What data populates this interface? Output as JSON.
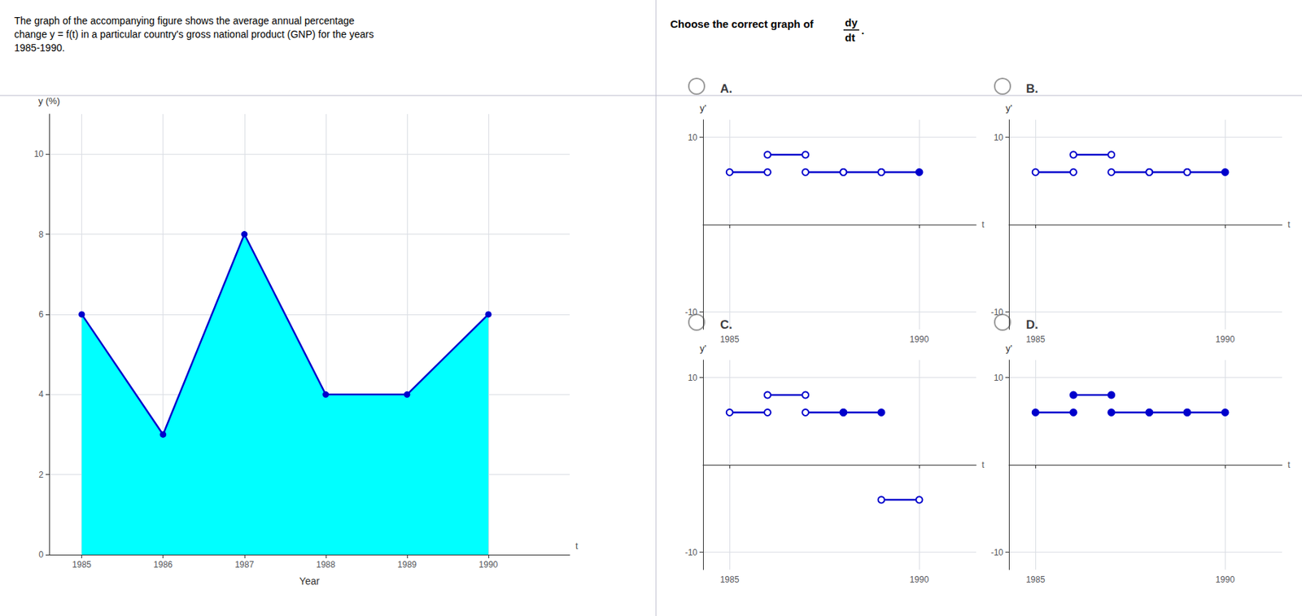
{
  "chart_data": [
    {
      "type": "line",
      "title": "The graph of the accompanying figure shows the average annual percentage\nchange y = f(t) in a particular country's gross national product (GNP) for the years\n1985-1990.",
      "x": [
        1985,
        1986,
        1987,
        1988,
        1989,
        1990
      ],
      "series": [
        {
          "type": "area",
          "color": "#00FFFF",
          "values": [
            6,
            3,
            8,
            4,
            4,
            6
          ]
        },
        {
          "type": "line",
          "color": "#0000CC",
          "marker": "circle",
          "values": [
            6,
            3,
            8,
            4,
            4,
            6
          ]
        }
      ],
      "xlim": [
        1984.6,
        1991
      ],
      "xticks": [
        1985,
        1986,
        1987,
        1988,
        1989,
        1990
      ],
      "ylim": [
        0,
        11
      ],
      "yticks": [
        0,
        2,
        4,
        6,
        8,
        10
      ],
      "xlabel": "Year",
      "ylabel": "y (%)",
      "annotations": [
        "t"
      ],
      "grid": true
    },
    {
      "type": "step",
      "title": "A.",
      "color": "#0000CC",
      "segments": [
        {
          "x0": 1985,
          "x1": 1986,
          "y": 6,
          "left_open": true,
          "right_open": true
        },
        {
          "x0": 1986,
          "x1": 1987,
          "y": 8,
          "left_open": true,
          "right_open": true
        },
        {
          "x0": 1987,
          "x1": 1988,
          "y": 6,
          "left_open": true,
          "right_open": true
        },
        {
          "x0": 1988,
          "x1": 1989,
          "y": 6,
          "left_open": true,
          "right_open": true
        },
        {
          "x0": 1989,
          "x1": 1990,
          "y": 6,
          "left_open": true,
          "right_open": false
        }
      ],
      "xlim": [
        1984.3,
        1991.5
      ],
      "xticks": [
        1985,
        1990
      ],
      "ylim": [
        -12,
        12
      ],
      "yticks": [
        -10,
        10
      ],
      "xlabel": "t",
      "ylabel": "y'",
      "grid": true,
      "annotations": [
        "Choose the correct graph of",
        "dy",
        "dt",
        "."
      ]
    },
    {
      "type": "step",
      "title": "B.",
      "color": "#0000CC",
      "segments": [
        {
          "x0": 1985,
          "x1": 1986,
          "y": 6,
          "left_open": true,
          "right_open": true
        },
        {
          "x0": 1986,
          "x1": 1987,
          "y": 8,
          "left_open": true,
          "right_open": true
        },
        {
          "x0": 1987,
          "x1": 1988,
          "y": 6,
          "left_open": true,
          "right_open": true
        },
        {
          "x0": 1988,
          "x1": 1989,
          "y": 6,
          "left_open": true,
          "right_open": true
        },
        {
          "x0": 1989,
          "x1": 1990,
          "y": 6,
          "left_open": true,
          "right_open": false
        }
      ],
      "xlim": [
        1984.3,
        1991.5
      ],
      "xticks": [
        1985,
        1990
      ],
      "ylim": [
        -12,
        12
      ],
      "yticks": [
        -10,
        10
      ],
      "xlabel": "t",
      "ylabel": "y'",
      "grid": true
    },
    {
      "type": "step",
      "title": "C.",
      "color": "#0000CC",
      "segments": [
        {
          "x0": 1985,
          "x1": 1986,
          "y": 6,
          "left_open": true,
          "right_open": true
        },
        {
          "x0": 1986,
          "x1": 1987,
          "y": 8,
          "left_open": true,
          "right_open": true
        },
        {
          "x0": 1987,
          "x1": 1988,
          "y": 6,
          "left_open": true,
          "right_open": true
        },
        {
          "x0": 1988,
          "x1": 1989,
          "y": 6,
          "left_open": false,
          "right_open": false
        },
        {
          "x0": 1989,
          "x1": 1990,
          "y": -4,
          "left_open": true,
          "right_open": true
        }
      ],
      "xlim": [
        1984.3,
        1991.5
      ],
      "xticks": [
        1985,
        1990
      ],
      "ylim": [
        -12,
        12
      ],
      "yticks": [
        -10,
        10
      ],
      "xlabel": "t",
      "ylabel": "y'",
      "grid": true
    },
    {
      "type": "step",
      "title": "D.",
      "color": "#0000CC",
      "segments": [
        {
          "x0": 1985,
          "x1": 1986,
          "y": 6,
          "left_open": false,
          "right_open": false
        },
        {
          "x0": 1986,
          "x1": 1987,
          "y": 8,
          "left_open": false,
          "right_open": false
        },
        {
          "x0": 1987,
          "x1": 1988,
          "y": 6,
          "left_open": false,
          "right_open": false
        },
        {
          "x0": 1988,
          "x1": 1989,
          "y": 6,
          "left_open": false,
          "right_open": false
        },
        {
          "x0": 1989,
          "x1": 1990,
          "y": 6,
          "left_open": false,
          "right_open": false
        }
      ],
      "xlim": [
        1984.3,
        1991.5
      ],
      "xticks": [
        1985,
        1990
      ],
      "ylim": [
        -12,
        12
      ],
      "yticks": [
        -10,
        10
      ],
      "xlabel": "t",
      "ylabel": "y'",
      "grid": true
    }
  ]
}
